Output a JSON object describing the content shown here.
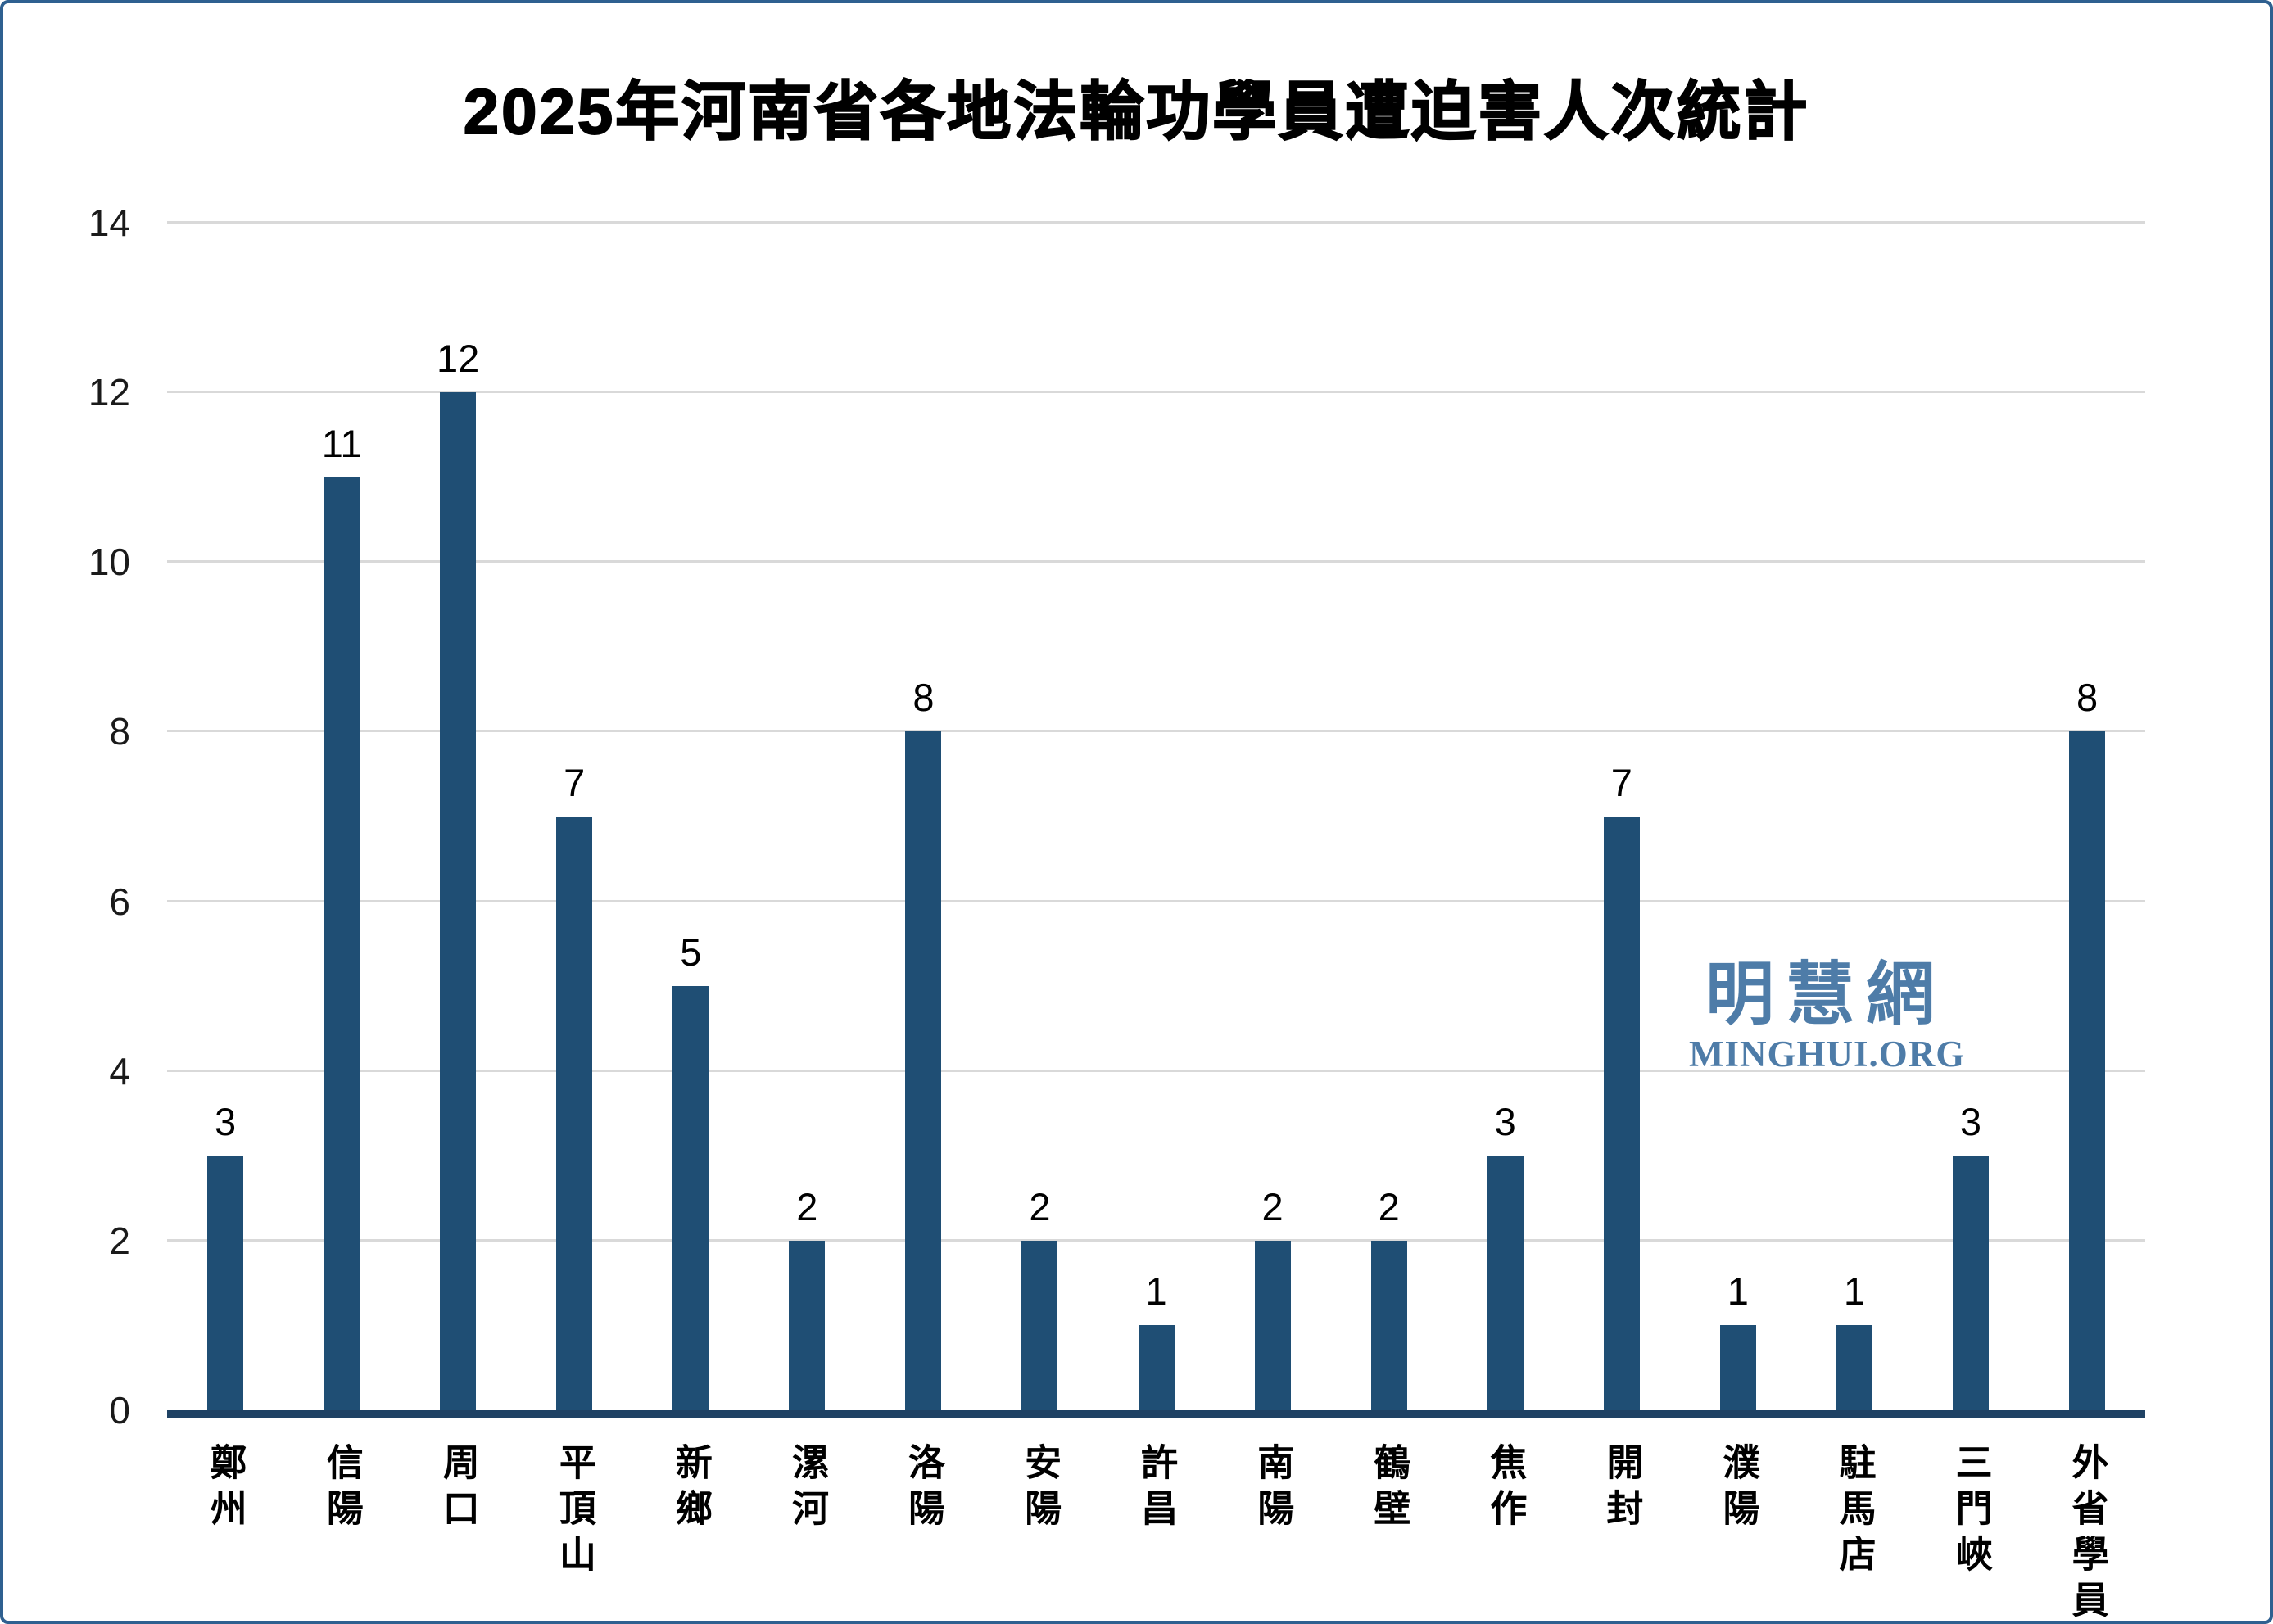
{
  "chart_data": {
    "type": "bar",
    "title": "2025年河南省各地法輪功學員遭迫害人次統計",
    "categories": [
      "鄭州",
      "信陽",
      "周口",
      "平頂山",
      "新鄉",
      "漯河",
      "洛陽",
      "安陽",
      "許昌",
      "南陽",
      "鶴壁",
      "焦作",
      "開封",
      "濮陽",
      "駐馬店",
      "三門峽",
      "外省學員"
    ],
    "values": [
      3,
      11,
      12,
      7,
      5,
      2,
      8,
      2,
      1,
      2,
      2,
      3,
      7,
      1,
      1,
      3,
      8
    ],
    "xlabel": "",
    "ylabel": "",
    "ylim": [
      0,
      14
    ],
    "yticks": [
      0,
      2,
      4,
      6,
      8,
      10,
      12,
      14
    ],
    "grid": true,
    "legend": "none",
    "data_labels": true,
    "bar_color": "#1F4E74",
    "axis_line_color": "#1F4264",
    "gridline_color": "#D9D9D9"
  },
  "watermark": {
    "line1": "明慧網",
    "line2": "MINGHUI.ORG",
    "color": "#4E7CA8"
  }
}
